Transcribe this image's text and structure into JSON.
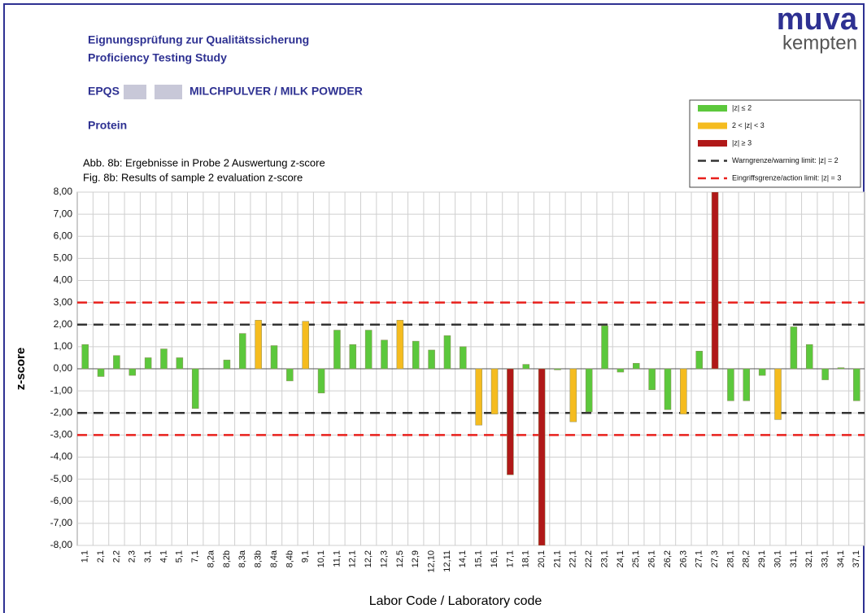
{
  "header": {
    "title_de": "Eignungsprüfung zur Qualitätssicherung",
    "title_en": "Proficiency Testing Study",
    "scheme": "EPQS",
    "product": "MILCHPULVER / MILK POWDER",
    "parameter": "Protein",
    "logo_top": "muva",
    "logo_bottom": "kempten"
  },
  "chart_data": {
    "type": "bar",
    "caption_de": "Abb. 8b: Ergebnisse in Probe 2 Auswertung z-score",
    "caption_en": "Fig.  8b:  Results of sample 2 evaluation z-score",
    "ylabel": "z-score",
    "xlabel": "Labor Code / Laboratory code",
    "categories": [
      "1,1",
      "2,1",
      "2,2",
      "2,3",
      "3,1",
      "4,1",
      "5,1",
      "7,1",
      "8,2a",
      "8,2b",
      "8,3a",
      "8,3b",
      "8,4a",
      "8,4b",
      "9,1",
      "10,1",
      "11,1",
      "12,1",
      "12,2",
      "12,3",
      "12,5",
      "12,9",
      "12,10",
      "12,11",
      "14,1",
      "15,1",
      "16,1",
      "17,1",
      "18,1",
      "20,1",
      "21,1",
      "22,1",
      "22,2",
      "23,1",
      "24,1",
      "25,1",
      "26,1",
      "26,2",
      "26,3",
      "27,1",
      "27,3",
      "28,1",
      "28,2",
      "29,1",
      "30,1",
      "31,1",
      "32,1",
      "33,1",
      "34,1",
      "37,1"
    ],
    "values": [
      1.1,
      -0.35,
      0.6,
      -0.3,
      0.5,
      0.9,
      0.5,
      -1.8,
      null,
      0.4,
      1.6,
      2.2,
      1.05,
      -0.55,
      2.15,
      -1.1,
      1.75,
      1.1,
      1.75,
      1.3,
      2.2,
      1.25,
      0.85,
      1.5,
      1.0,
      -2.55,
      -2.05,
      -4.8,
      0.2,
      -8.0,
      -0.05,
      -2.4,
      -1.95,
      1.95,
      -0.15,
      0.25,
      -0.95,
      -1.85,
      -2.05,
      0.8,
      8.0,
      -1.45,
      -1.45,
      -0.3,
      -2.3,
      1.9,
      1.1,
      -0.5,
      0.05,
      -1.45
    ],
    "bar_class": [
      0,
      0,
      0,
      0,
      0,
      0,
      0,
      0,
      null,
      0,
      0,
      1,
      0,
      0,
      1,
      0,
      0,
      0,
      0,
      0,
      1,
      0,
      0,
      0,
      0,
      1,
      1,
      2,
      0,
      2,
      0,
      1,
      0,
      0,
      0,
      0,
      0,
      0,
      1,
      0,
      2,
      0,
      0,
      0,
      1,
      0,
      0,
      0,
      0,
      0
    ],
    "legend": [
      {
        "label": "|z| ≤ 2",
        "color": "#5cc83c",
        "kind": "bar"
      },
      {
        "label": "2 < |z| < 3",
        "color": "#f5bc1f",
        "kind": "bar"
      },
      {
        "label": "|z| ≥ 3",
        "color": "#b01818",
        "kind": "bar"
      },
      {
        "label": "Warngrenze/warning limit: |z| = 2",
        "color": "#333333",
        "kind": "line"
      },
      {
        "label": "Eingriffsgrenze/action limit: |z| = 3",
        "color": "#e8201c",
        "kind": "line"
      }
    ],
    "reference_lines": [
      {
        "value": 3,
        "legend": 4
      },
      {
        "value": 2,
        "legend": 3
      },
      {
        "value": -2,
        "legend": 3
      },
      {
        "value": -3,
        "legend": 4
      }
    ],
    "ylim": [
      -8,
      8
    ],
    "yticks": [
      {
        "value": 8,
        "label": "8,00"
      },
      {
        "value": 7,
        "label": "7,00"
      },
      {
        "value": 6,
        "label": "6,00"
      },
      {
        "value": 5,
        "label": "5,00"
      },
      {
        "value": 4,
        "label": "4,00"
      },
      {
        "value": 3,
        "label": "3,00"
      },
      {
        "value": 2,
        "label": "2,00"
      },
      {
        "value": 1,
        "label": "1,00"
      },
      {
        "value": 0,
        "label": "0,00"
      },
      {
        "value": -1,
        "label": "-1,00"
      },
      {
        "value": -2,
        "label": "-2,00"
      },
      {
        "value": -3,
        "label": "-3,00"
      },
      {
        "value": -4,
        "label": "-4,00"
      },
      {
        "value": -5,
        "label": "-5,00"
      },
      {
        "value": -6,
        "label": "-6,00"
      },
      {
        "value": -7,
        "label": "-7,00"
      },
      {
        "value": -8,
        "label": "-8,00"
      }
    ],
    "grid": true
  }
}
